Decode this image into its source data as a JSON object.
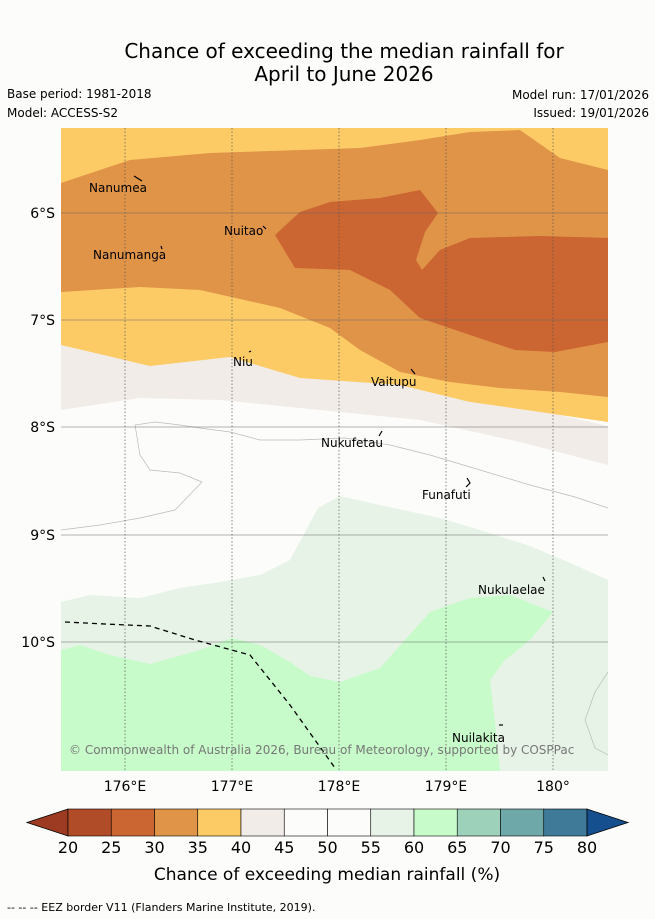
{
  "title": {
    "line1": "Chance of exceeding the median rainfall for",
    "line2": "April to June 2026"
  },
  "meta": {
    "base_period": "Base period: 1981-2018",
    "model": "Model: ACCESS-S2",
    "model_run": "Model run: 17/01/2026",
    "issued": "Issued: 19/01/2026"
  },
  "map": {
    "lat_labels": [
      "6°S",
      "7°S",
      "8°S",
      "9°S",
      "10°S"
    ],
    "lon_labels": [
      "176°E",
      "177°E",
      "178°E",
      "179°E",
      "180°"
    ],
    "places": [
      "Nanumea",
      "Nuitao",
      "Nanumanga",
      "Niu",
      "Vaitupu",
      "Nukufetau",
      "Funafuti",
      "Nukulaelae",
      "Nuilakita"
    ],
    "copyright": "© Commonwealth of Australia 2026, Bureau of Meteorology, supported by COSPPac"
  },
  "colorbar": {
    "ticks": [
      "20",
      "25",
      "30",
      "35",
      "40",
      "45",
      "50",
      "55",
      "60",
      "65",
      "70",
      "75",
      "80"
    ],
    "colors": [
      "#b14c28",
      "#cb6532",
      "#e09448",
      "#fdcb66",
      "#f1ece8",
      "#fcfdfb",
      "#fcfdfb",
      "#e7f3e7",
      "#c7fbc9",
      "#9dd1ba",
      "#6fa8a9",
      "#3f7a99"
    ],
    "under_color": "#9c3a22",
    "over_color": "#154f8e",
    "label": "Chance of exceeding median rainfall (%)"
  },
  "legend": {
    "eez": "-- -- -- EEZ border V11 (Flanders Marine Institute, 2019)."
  },
  "colors": {
    "c20": "#b14c28",
    "c25": "#cb6532",
    "c30": "#e09448",
    "c35": "#fdcb66",
    "c40": "#f1ece8",
    "c55": "#e7f3e7",
    "c60": "#c7fbc9",
    "c65": "#9dd1ba"
  }
}
